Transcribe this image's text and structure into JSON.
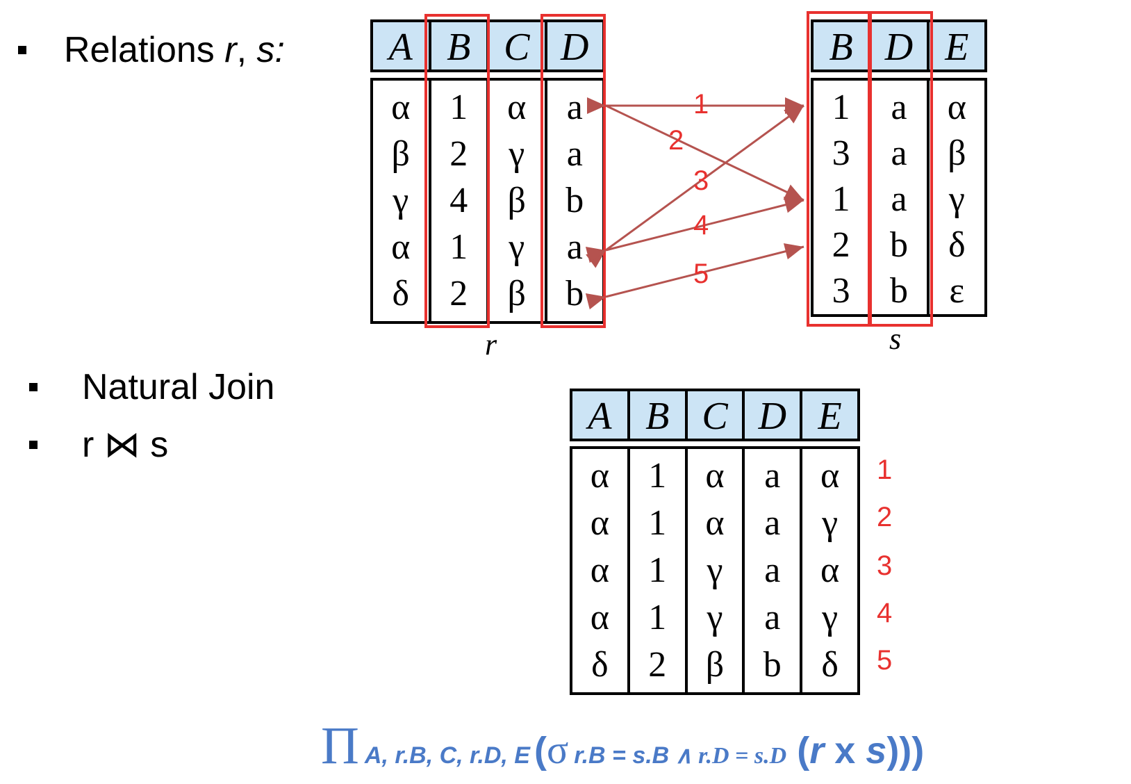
{
  "bullets": {
    "relations": {
      "label": "Relations ",
      "r": "r",
      "comma": ", ",
      "s": "s",
      "colon": ":"
    },
    "natural_join": "Natural Join",
    "join_expr": "r ⋈ s"
  },
  "relation_r": {
    "name": "r",
    "headers": [
      "A",
      "B",
      "C",
      "D"
    ],
    "columns": [
      [
        "α",
        "β",
        "γ",
        "α",
        "δ"
      ],
      [
        "1",
        "2",
        "4",
        "1",
        "2"
      ],
      [
        "α",
        "γ",
        "β",
        "γ",
        "β"
      ],
      [
        "a",
        "a",
        "b",
        "a",
        "b"
      ]
    ]
  },
  "relation_s": {
    "name": "s",
    "headers": [
      "B",
      "D",
      "E"
    ],
    "columns": [
      [
        "1",
        "3",
        "1",
        "2",
        "3"
      ],
      [
        "a",
        "a",
        "a",
        "b",
        "b"
      ],
      [
        "α",
        "β",
        "γ",
        "δ",
        "ε"
      ]
    ]
  },
  "arrow_labels": [
    "1",
    "2",
    "3",
    "4",
    "5"
  ],
  "result": {
    "headers": [
      "A",
      "B",
      "C",
      "D",
      "E"
    ],
    "columns": [
      [
        "α",
        "α",
        "α",
        "α",
        "δ"
      ],
      [
        "1",
        "1",
        "1",
        "1",
        "2"
      ],
      [
        "α",
        "α",
        "γ",
        "γ",
        "β"
      ],
      [
        "a",
        "a",
        "a",
        "a",
        "b"
      ],
      [
        "α",
        "γ",
        "α",
        "γ",
        "δ"
      ]
    ],
    "row_numbers": [
      "1",
      "2",
      "3",
      "4",
      "5"
    ]
  },
  "formula": {
    "pi": "Π",
    "pi_sub": "A, r.B, C, r.D, E",
    "open": "(",
    "sigma": "σ",
    "sigma_sub_a": "r.B = s.B",
    "sigma_sub_b": " ∧ r.D = s.D",
    "inner": " (",
    "rxs": "r",
    "x": " x ",
    "s": "s",
    "close": ")))"
  },
  "colors": {
    "header_fill": "#cce4f5",
    "highlight": "#e8312f",
    "arrow": "#b5534f",
    "formula": "#4a7ac7"
  }
}
